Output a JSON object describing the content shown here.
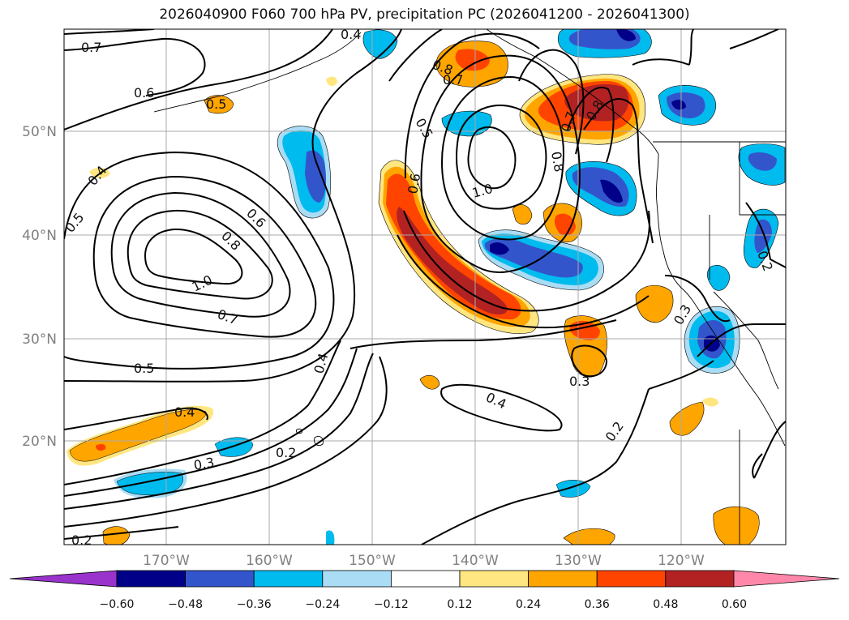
{
  "title": "2026040900 F060 700 hPa PV, precipitation PC (2026041200 - 2026041300)",
  "lon_ticks": [
    "170°W",
    "160°W",
    "150°W",
    "140°W",
    "130°W",
    "120°W"
  ],
  "lat_ticks": [
    "50°N",
    "40°N",
    "30°N",
    "20°N"
  ],
  "contour_labels": [
    "0.7",
    "0.6",
    "0.5",
    "0.4",
    "0.5",
    "1.0",
    "0.8",
    "0.6",
    "0.7",
    "0.5",
    "0.4",
    "0.3",
    "0.2",
    "0.2",
    "0.4",
    "0.5",
    "0.6",
    "0.8",
    "1.0",
    "0.8",
    "0.7",
    "0.8",
    "0.7",
    "0.4",
    "0.3",
    "0.2",
    "0.3",
    "0.2",
    "0.4"
  ],
  "colorbar": {
    "tick_labels": [
      "−0.60",
      "−0.48",
      "−0.36",
      "−0.24",
      "−0.12",
      "0.12",
      "0.24",
      "0.36",
      "0.48",
      "0.60"
    ],
    "colors": [
      "#9933cc",
      "#000088",
      "#3355cc",
      "#00bbee",
      "#aaddf5",
      "#ffffff",
      "#ffe680",
      "#ffa500",
      "#ff4400",
      "#b22222",
      "#ff88aa"
    ]
  },
  "colors": {
    "neg_strong": "#000088",
    "neg_mid": "#3355cc",
    "neg_weak": "#00bbee",
    "neg_faint": "#aaddf5",
    "pos_faint": "#ffe680",
    "pos_weak": "#ffa500",
    "pos_mid": "#ff4400",
    "pos_strong": "#b22222"
  }
}
